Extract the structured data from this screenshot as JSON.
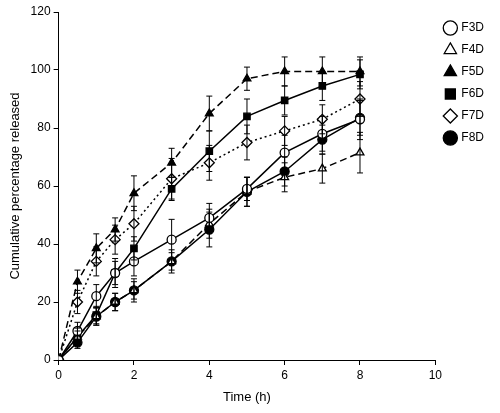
{
  "chart_data": {
    "type": "line",
    "x_label": "Time (h)",
    "y_label": "Cumulative percentage released",
    "x": [
      0,
      0.5,
      1,
      1.5,
      2,
      3,
      4,
      5,
      6,
      7,
      8
    ],
    "xlim": [
      0,
      10
    ],
    "xticks": [
      0,
      2,
      4,
      6,
      8,
      10
    ],
    "ylim": [
      0,
      120
    ],
    "yticks": [
      0,
      20,
      40,
      60,
      80,
      100,
      120
    ],
    "grid": false,
    "legend": "right",
    "series": [
      {
        "name": "F3D",
        "color": "#000000",
        "marker": "circle-open",
        "line_style": "solid",
        "values": [
          0,
          10,
          22,
          30,
          34,
          41.5,
          49,
          59,
          71.5,
          78,
          83
        ],
        "errors": [
          0,
          3,
          4,
          5,
          5,
          7,
          5,
          4,
          6,
          6,
          7
        ]
      },
      {
        "name": "F4D",
        "color": "#000000",
        "marker": "triangle-open",
        "line_style": "dashed",
        "values": [
          0,
          8,
          15,
          20,
          24,
          34,
          47,
          58,
          63,
          66,
          71.5
        ],
        "errors": [
          0,
          3,
          3,
          3,
          4,
          4,
          5,
          5,
          5,
          5,
          7
        ]
      },
      {
        "name": "F5D",
        "color": "#000000",
        "marker": "triangle",
        "line_style": "dashed",
        "values": [
          0,
          27,
          38.5,
          45,
          57.5,
          68,
          85,
          97,
          99.5,
          99.5,
          99.5
        ],
        "errors": [
          0,
          4,
          5,
          4,
          6,
          5,
          6,
          4,
          5,
          5,
          5
        ]
      },
      {
        "name": "F6D",
        "color": "#000000",
        "marker": "square",
        "line_style": "solid",
        "values": [
          0,
          8,
          15.5,
          30,
          38.5,
          59,
          72,
          84,
          89.5,
          94.5,
          98.5
        ],
        "errors": [
          0,
          2,
          3,
          4,
          4,
          4,
          7,
          6,
          5,
          5,
          5
        ]
      },
      {
        "name": "F7D",
        "color": "#000000",
        "marker": "diamond-open",
        "line_style": "dotted",
        "values": [
          0,
          20,
          34,
          41.5,
          47,
          62.5,
          68,
          75,
          79,
          83,
          90
        ],
        "errors": [
          0,
          4,
          5,
          5,
          6,
          7,
          6,
          6,
          5,
          5,
          6
        ]
      },
      {
        "name": "F8D",
        "color": "#000000",
        "marker": "circle",
        "line_style": "solid",
        "values": [
          0,
          6,
          15,
          20,
          24,
          34,
          45,
          58,
          65,
          76,
          83.5
        ],
        "errors": [
          0,
          2,
          3,
          3,
          3,
          3,
          6,
          5,
          5,
          5,
          6
        ]
      }
    ]
  }
}
